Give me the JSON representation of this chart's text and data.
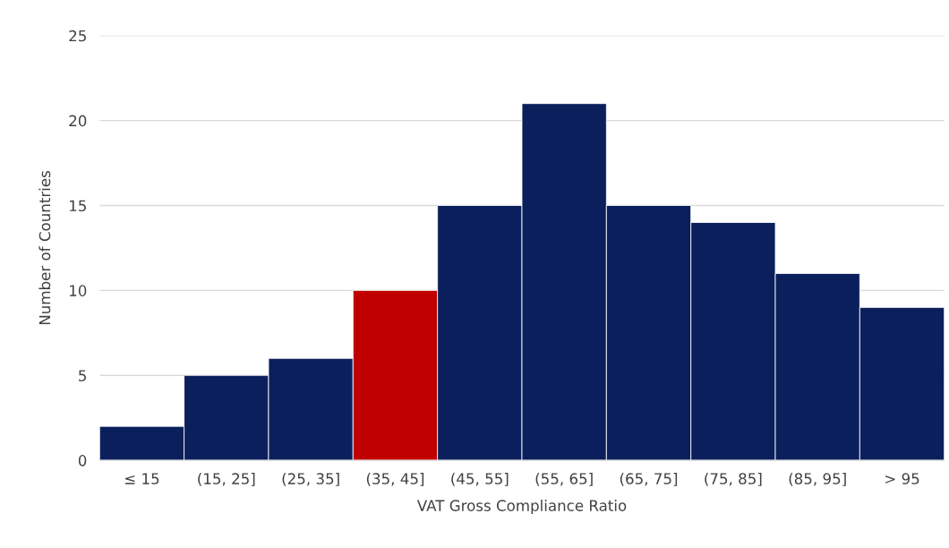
{
  "chart_data": {
    "type": "bar",
    "xlabel": "VAT Gross Compliance Ratio",
    "ylabel": "Number of Countries",
    "categories": [
      "≤ 15",
      "(15, 25]",
      "(25, 35]",
      "(35, 45]",
      "(45, 55]",
      "(55, 65]",
      "(65, 75]",
      "(75, 85]",
      "(85, 95]",
      "> 95"
    ],
    "values": [
      2,
      5,
      6,
      10,
      15,
      21,
      15,
      14,
      11,
      9
    ],
    "colors": [
      "#0b1f5c",
      "#0b1f5c",
      "#0b1f5c",
      "#c00000",
      "#0b1f5c",
      "#0b1f5c",
      "#0b1f5c",
      "#0b1f5c",
      "#0b1f5c",
      "#0b1f5c"
    ],
    "ylim": [
      0,
      25
    ],
    "yticks": [
      0,
      5,
      10,
      15,
      20,
      25
    ],
    "grid": "y"
  }
}
